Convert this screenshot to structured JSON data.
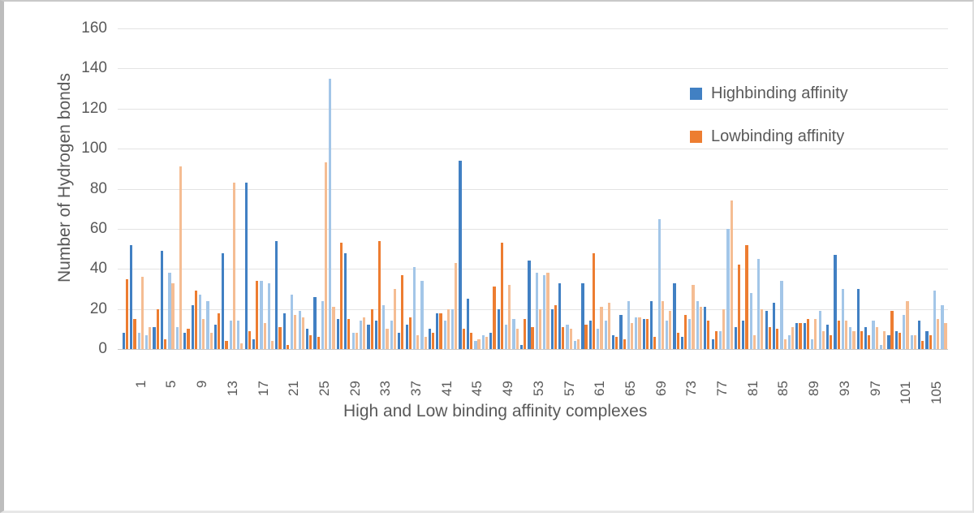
{
  "chart": {
    "y_axis_title": "Number of Hydrogen bonds",
    "x_axis_title": "High and Low binding affinity complexes",
    "legend": {
      "high_label": "Highbinding affinity",
      "low_label": "Lowbinding affinity"
    },
    "colors": {
      "high": "#4180c3",
      "high_light": "#a3c6e8",
      "low": "#ed7d31",
      "low_light": "#f5bd93",
      "grid": "#e3e3e3",
      "axis_line": "#c6c6c6",
      "text": "#595959"
    }
  },
  "chart_data": {
    "type": "bar",
    "title": "",
    "xlabel": "High and Low binding affinity complexes",
    "ylabel": "Number of Hydrogen bonds",
    "ylim": [
      0,
      160
    ],
    "y_ticks": [
      0,
      20,
      40,
      60,
      80,
      100,
      120,
      140,
      160
    ],
    "x_tick_labels": [
      "1",
      "5",
      "9",
      "13",
      "17",
      "21",
      "25",
      "29",
      "33",
      "37",
      "41",
      "45",
      "49",
      "53",
      "57",
      "61",
      "65",
      "69",
      "73",
      "77",
      "81",
      "85",
      "89",
      "93",
      "97",
      "101",
      "105"
    ],
    "x_tick_step": 4,
    "n_categories": 108,
    "grid": true,
    "legend_position": "upper right",
    "series": [
      {
        "name": "Highbinding affinity",
        "values": [
          8,
          52,
          8,
          7,
          11,
          49,
          38,
          11,
          8,
          22,
          27,
          24,
          12,
          48,
          14,
          14,
          83,
          5,
          34,
          33,
          54,
          18,
          27,
          19,
          10,
          26,
          24,
          135,
          15,
          48,
          8,
          14,
          12,
          14,
          22,
          14,
          8,
          12,
          41,
          34,
          10,
          18,
          14,
          20,
          94,
          25,
          4,
          7,
          8,
          20,
          12,
          15,
          2,
          44,
          38,
          37,
          20,
          33,
          12,
          4,
          33,
          14,
          10,
          14,
          7,
          17,
          24,
          16,
          15,
          24,
          65,
          14,
          33,
          6,
          15,
          24,
          21,
          5,
          9,
          60,
          11,
          14,
          28,
          45,
          19,
          23,
          34,
          7,
          13,
          13,
          5,
          19,
          12,
          47,
          30,
          11,
          30,
          11,
          14,
          2,
          7,
          9,
          17,
          7,
          14,
          9,
          29,
          22
        ]
      },
      {
        "name": "Lowbinding affinity",
        "values": [
          35,
          15,
          36,
          11,
          20,
          5,
          33,
          91,
          10,
          29,
          15,
          8,
          18,
          4,
          83,
          3,
          9,
          34,
          13,
          4,
          11,
          2,
          17,
          16,
          7,
          6,
          93,
          21,
          53,
          15,
          8,
          16,
          20,
          54,
          10,
          30,
          37,
          16,
          7,
          6,
          8,
          18,
          20,
          43,
          10,
          8,
          5,
          6,
          31,
          53,
          32,
          10,
          15,
          11,
          20,
          38,
          22,
          11,
          10,
          5,
          12,
          48,
          21,
          23,
          6,
          5,
          13,
          16,
          15,
          6,
          24,
          19,
          8,
          17,
          32,
          21,
          14,
          9,
          20,
          74,
          42,
          52,
          7,
          20,
          11,
          10,
          5,
          11,
          13,
          15,
          15,
          9,
          7,
          14,
          14,
          9,
          9,
          7,
          11,
          9,
          19,
          8,
          24,
          7,
          4,
          7,
          15,
          13
        ]
      }
    ]
  }
}
